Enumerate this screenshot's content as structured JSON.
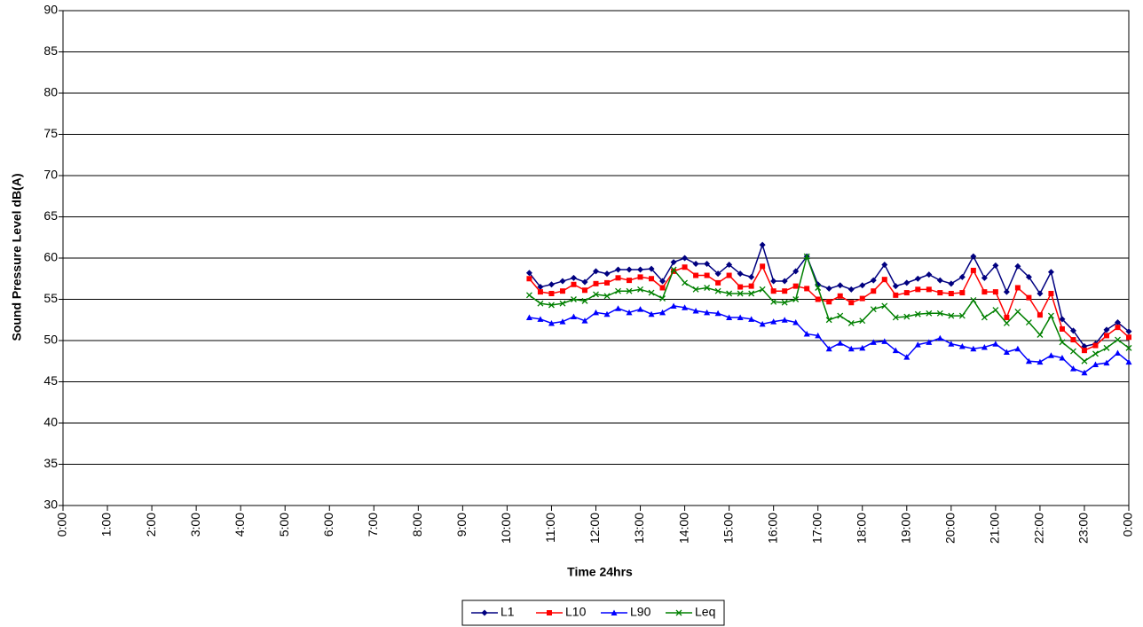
{
  "chart_data": {
    "type": "line",
    "xlabel": "Time 24hrs",
    "ylabel": "Sound Pressure Level dB(A)",
    "xlim": [
      0,
      24
    ],
    "ylim": [
      30,
      90
    ],
    "xticks": [
      {
        "value": 0,
        "label": "0:00"
      },
      {
        "value": 1,
        "label": "1:00"
      },
      {
        "value": 2,
        "label": "2:00"
      },
      {
        "value": 3,
        "label": "3:00"
      },
      {
        "value": 4,
        "label": "4:00"
      },
      {
        "value": 5,
        "label": "5:00"
      },
      {
        "value": 6,
        "label": "6:00"
      },
      {
        "value": 7,
        "label": "7:00"
      },
      {
        "value": 8,
        "label": "8:00"
      },
      {
        "value": 9,
        "label": "9:00"
      },
      {
        "value": 10,
        "label": "10:00"
      },
      {
        "value": 11,
        "label": "11:00"
      },
      {
        "value": 12,
        "label": "12:00"
      },
      {
        "value": 13,
        "label": "13:00"
      },
      {
        "value": 14,
        "label": "14:00"
      },
      {
        "value": 15,
        "label": "15:00"
      },
      {
        "value": 16,
        "label": "16:00"
      },
      {
        "value": 17,
        "label": "17:00"
      },
      {
        "value": 18,
        "label": "18:00"
      },
      {
        "value": 19,
        "label": "19:00"
      },
      {
        "value": 20,
        "label": "20:00"
      },
      {
        "value": 21,
        "label": "21:00"
      },
      {
        "value": 22,
        "label": "22:00"
      },
      {
        "value": 23,
        "label": "23:00"
      },
      {
        "value": 24,
        "label": "0:00"
      }
    ],
    "yticks": [
      30,
      35,
      40,
      45,
      50,
      55,
      60,
      65,
      70,
      75,
      80,
      85,
      90
    ],
    "grid": true,
    "legend": "bottom",
    "x": [
      10.5,
      10.75,
      11,
      11.25,
      11.5,
      11.75,
      12,
      12.25,
      12.5,
      12.75,
      13,
      13.25,
      13.5,
      13.75,
      14,
      14.25,
      14.5,
      14.75,
      15,
      15.25,
      15.5,
      15.75,
      16,
      16.25,
      16.5,
      16.75,
      17,
      17.25,
      17.5,
      17.75,
      18,
      18.25,
      18.5,
      18.75,
      19,
      19.25,
      19.5,
      19.75,
      20,
      20.25,
      20.5,
      20.75,
      21,
      21.25,
      21.5,
      21.75,
      22,
      22.25,
      22.5,
      22.75,
      23,
      23.25,
      23.5,
      23.75,
      24
    ],
    "series": [
      {
        "name": "L1",
        "color": "#000080",
        "marker": "diamond",
        "values": [
          58.2,
          56.5,
          56.8,
          57.2,
          57.6,
          57.1,
          58.4,
          58.1,
          58.6,
          58.6,
          58.6,
          58.7,
          57.2,
          59.5,
          60.0,
          59.3,
          59.3,
          58.1,
          59.2,
          58.1,
          57.7,
          61.6,
          57.2,
          57.2,
          58.4,
          60.2,
          56.8,
          56.3,
          56.7,
          56.2,
          56.7,
          57.3,
          59.2,
          56.6,
          57.0,
          57.5,
          58.0,
          57.3,
          56.9,
          57.7,
          60.2,
          57.6,
          59.1,
          55.9,
          59.0,
          57.7,
          55.7,
          58.3,
          52.6,
          51.2,
          49.3,
          49.6,
          51.3,
          52.2,
          51.1
        ]
      },
      {
        "name": "L10",
        "color": "#ff0000",
        "marker": "square",
        "values": [
          57.5,
          55.9,
          55.7,
          56.0,
          56.8,
          56.1,
          56.9,
          57.0,
          57.6,
          57.3,
          57.7,
          57.5,
          56.4,
          58.4,
          58.9,
          57.9,
          57.9,
          57.0,
          57.9,
          56.5,
          56.6,
          59.0,
          56.0,
          56.0,
          56.6,
          56.3,
          55.0,
          54.7,
          55.4,
          54.6,
          55.1,
          56.0,
          57.4,
          55.5,
          55.8,
          56.2,
          56.2,
          55.8,
          55.7,
          55.8,
          58.5,
          55.9,
          55.9,
          52.8,
          56.4,
          55.2,
          53.1,
          55.7,
          51.4,
          50.1,
          48.8,
          49.4,
          50.6,
          51.6,
          50.4
        ]
      },
      {
        "name": "L90",
        "color": "#0000ff",
        "marker": "triangle",
        "values": [
          52.8,
          52.6,
          52.1,
          52.3,
          52.9,
          52.4,
          53.4,
          53.2,
          53.9,
          53.4,
          53.8,
          53.2,
          53.4,
          54.2,
          54.0,
          53.6,
          53.4,
          53.3,
          52.8,
          52.8,
          52.6,
          52.0,
          52.3,
          52.5,
          52.2,
          50.8,
          50.6,
          49.0,
          49.7,
          49.0,
          49.1,
          49.8,
          49.9,
          48.8,
          48.0,
          49.5,
          49.8,
          50.3,
          49.6,
          49.3,
          49.0,
          49.2,
          49.6,
          48.6,
          49.0,
          47.5,
          47.4,
          48.2,
          47.9,
          46.6,
          46.1,
          47.1,
          47.3,
          48.5,
          47.4
        ]
      },
      {
        "name": "Leq",
        "color": "#008000",
        "marker": "x",
        "values": [
          55.5,
          54.5,
          54.3,
          54.5,
          55.0,
          54.8,
          55.6,
          55.4,
          56.0,
          56.0,
          56.2,
          55.8,
          55.1,
          58.6,
          57.0,
          56.2,
          56.4,
          56.0,
          55.7,
          55.7,
          55.7,
          56.2,
          54.7,
          54.6,
          55.0,
          60.2,
          56.4,
          52.5,
          53.0,
          52.1,
          52.4,
          53.8,
          54.2,
          52.8,
          52.9,
          53.2,
          53.3,
          53.3,
          53.0,
          53.0,
          54.9,
          52.8,
          53.7,
          52.1,
          53.5,
          52.2,
          50.7,
          53.0,
          49.8,
          48.7,
          47.5,
          48.4,
          49.1,
          50.1,
          49.1
        ]
      }
    ]
  }
}
